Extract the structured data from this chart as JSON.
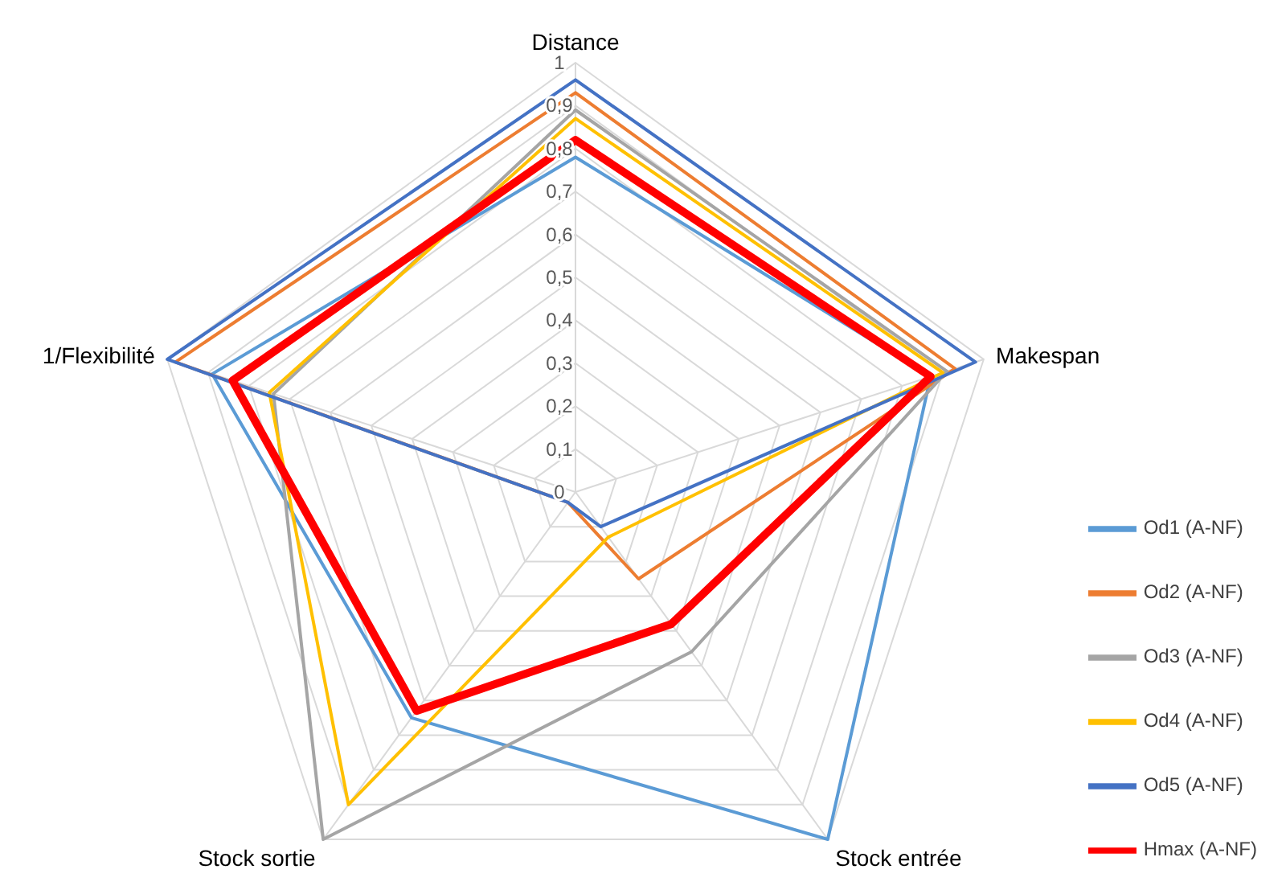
{
  "chart_data": {
    "type": "radar",
    "categories": [
      "Distance",
      "Makespan",
      "Stock entrée",
      "Stock sortie",
      "1/Flexibilité"
    ],
    "series": [
      {
        "name": "Od1 (A-NF)",
        "color": "#5b9bd5",
        "values": [
          0.78,
          0.87,
          1,
          0.65,
          0.89
        ]
      },
      {
        "name": "Od2 (A-NF)",
        "color": "#ed7d31",
        "values": [
          0.93,
          0.93,
          0.25,
          0.03,
          0.98
        ]
      },
      {
        "name": "Od3 (A-NF)",
        "color": "#a5a5a5",
        "values": [
          0.89,
          0.91,
          0.46,
          1,
          0.74
        ]
      },
      {
        "name": "Od4 (A-NF)",
        "color": "#ffc000",
        "values": [
          0.87,
          0.9,
          0.13,
          0.9,
          0.75
        ]
      },
      {
        "name": "Od5 (A-NF)",
        "color": "#4472c4",
        "values": [
          0.96,
          0.98,
          0.1,
          0.03,
          1
        ]
      },
      {
        "name": "Hmax (A-NF)",
        "color": "#ff0000",
        "values": [
          0.82,
          0.87,
          0.38,
          0.63,
          0.84
        ]
      }
    ],
    "ylim": [
      0,
      1
    ],
    "yticks": [
      0,
      {
        "value": 0.1,
        "label": "0,1"
      },
      {
        "value": 0.2,
        "label": "0,2"
      },
      {
        "value": 0.3,
        "label": "0,3"
      },
      {
        "value": 0.4,
        "label": "0,4"
      },
      {
        "value": 0.5,
        "label": "0,5"
      },
      {
        "value": 0.6,
        "label": "0,6"
      },
      {
        "value": 0.7,
        "label": "0,7"
      },
      {
        "value": 0.8,
        "label": "0,8"
      },
      {
        "value": 0.9,
        "label": "0,9"
      },
      1
    ],
    "grid": true,
    "legend": "right",
    "marker": "none",
    "line_style": "solid"
  }
}
